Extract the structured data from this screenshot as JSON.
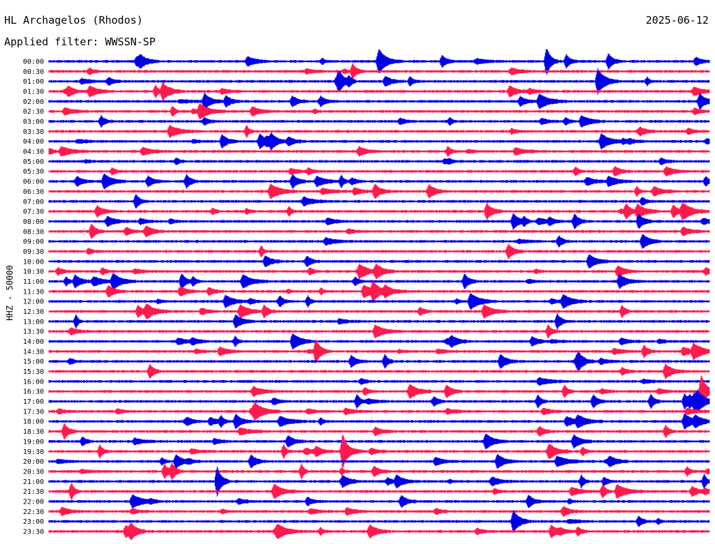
{
  "header": {
    "station": "HL Archagelos (Rhodos)",
    "date": "2025-06-12",
    "filter": "Applied filter: WWSSN-SP",
    "channel": "HHZ - 50000"
  },
  "chart_data": {
    "type": "line",
    "title": "HL Archagelos (Rhodos)",
    "ylabel": "HHZ - 50000",
    "rows": [
      "00:00",
      "00:30",
      "01:00",
      "01:30",
      "02:00",
      "02:30",
      "03:00",
      "03:30",
      "04:00",
      "04:30",
      "05:00",
      "05:30",
      "06:00",
      "06:30",
      "07:00",
      "07:30",
      "08:00",
      "08:30",
      "09:00",
      "09:30",
      "10:00",
      "10:30",
      "11:00",
      "11:30",
      "12:00",
      "12:30",
      "13:00",
      "13:30",
      "14:00",
      "14:30",
      "15:00",
      "15:30",
      "16:00",
      "16:30",
      "17:00",
      "17:30",
      "18:00",
      "18:30",
      "19:00",
      "19:30",
      "20:00",
      "20:30",
      "21:00",
      "21:30",
      "22:00",
      "22:30",
      "23:00",
      "23:30"
    ],
    "series_colors": [
      "#0000e6",
      "#ff1a4d"
    ],
    "grid": false
  }
}
